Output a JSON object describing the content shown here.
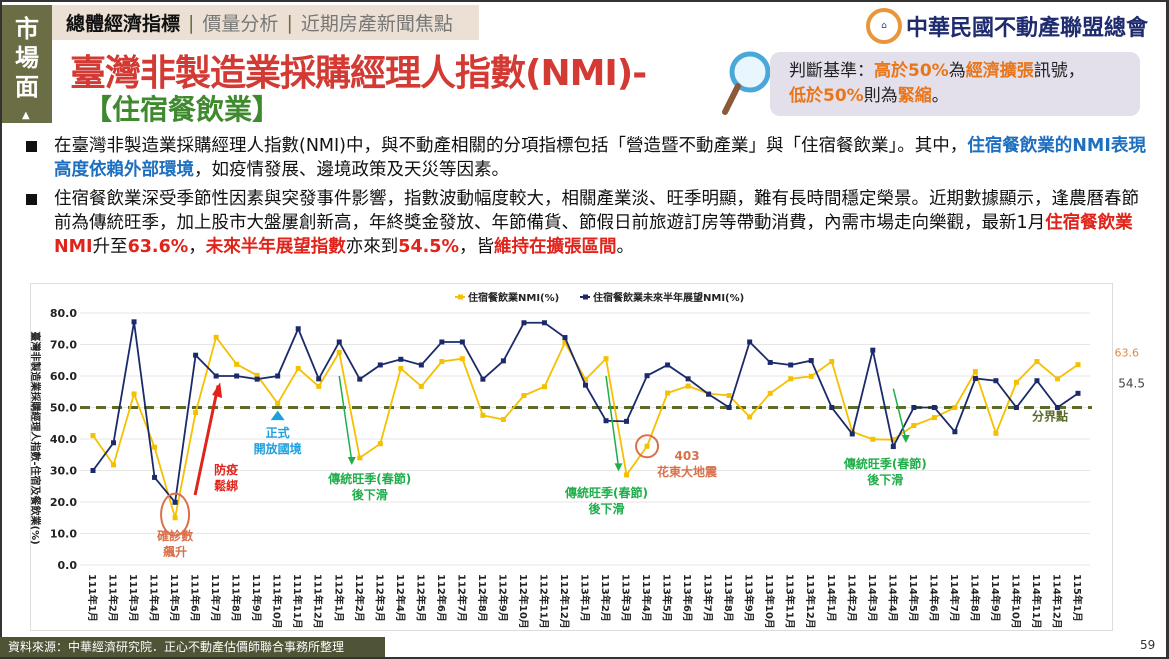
{
  "side_tab": "市場面",
  "nav": {
    "items": [
      "總體經濟指標",
      "價量分析",
      "近期房產新聞焦點"
    ],
    "separator": "|"
  },
  "title": "臺灣非製造業採購經理人指數(NMI)-",
  "subtitle": "【住宿餐飲業】",
  "logo_text": "中華民國不動產聯盟總會",
  "criteria": {
    "p1": "判斷基準：",
    "p2": "高於50%",
    "p3": "為",
    "p4": "經濟擴張",
    "p5": "訊號，",
    "p6": "低於50%",
    "p7": "則為",
    "p8": "緊縮",
    "p9": "。"
  },
  "bullets": [
    {
      "a": "在臺灣非製造業採購經理人指數(NMI)中，與不動產相關的分項指標包括「營造暨不動產業」與「住宿餐飲業」。其中，",
      "b": "住宿餐飲業的NMI表現高度依賴外部環境",
      "c": "，如疫情發展、邊境政策及天災等因素。"
    },
    {
      "a": "住宿餐飲業深受季節性因素與突發事件影響，指數波動幅度較大，相關產業淡、旺季明顯，難有長時間穩定榮景。近期數據顯示，逢農曆春節前為傳統旺季，加上股市大盤屢創新高，年終獎金發放、年節備貨、節假日前旅遊訂房等帶動消費，內需市場走向樂觀，最新1月",
      "b": "住宿餐飲業NMI",
      "c": "升至",
      "d": "63.6%",
      "e": "，",
      "f": "未來半年展望指數",
      "g": "亦來到",
      "h": "54.5%",
      "i": "，皆",
      "j": "維持在擴張區間",
      "k": "。"
    }
  ],
  "chart_data": {
    "type": "line",
    "title": "",
    "ylabel": "臺灣非製造業採購經理人指數-住宿及餐飲業(%)",
    "xlabel": "",
    "ylim": [
      0,
      80
    ],
    "yticks": [
      "0.0",
      "10.0",
      "20.0",
      "30.0",
      "40.0",
      "50.0",
      "60.0",
      "70.0",
      "80.0"
    ],
    "grid": true,
    "legend_position": "top-center",
    "categories": [
      "111年1月",
      "111年2月",
      "111年3月",
      "111年4月",
      "111年5月",
      "111年6月",
      "111年7月",
      "111年8月",
      "111年9月",
      "111年10月",
      "111年11月",
      "111年12月",
      "112年1月",
      "112年2月",
      "112年3月",
      "112年4月",
      "112年5月",
      "112年6月",
      "112年7月",
      "112年8月",
      "112年9月",
      "112年10月",
      "112年11月",
      "112年12月",
      "113年1月",
      "113年2月",
      "113年3月",
      "113年4月",
      "113年5月",
      "113年6月",
      "113年7月",
      "113年8月",
      "113年9月",
      "113年10月",
      "113年11月",
      "113年12月",
      "114年1月",
      "114年2月",
      "114年3月",
      "114年4月",
      "114年5月",
      "114年6月",
      "114年7月",
      "114年8月",
      "114年9月",
      "114年10月",
      "114年11月",
      "114年12月",
      "115年1月"
    ],
    "series": [
      {
        "name": "住宿餐飲業NMI(%)",
        "color": "#f5c000",
        "values": [
          41.1,
          31.8,
          54.3,
          37.4,
          15.0,
          48.4,
          72.3,
          63.7,
          60.2,
          51.3,
          62.4,
          56.7,
          67.5,
          34.0,
          38.5,
          62.4,
          56.7,
          64.6,
          65.5,
          47.5,
          46.2,
          53.8,
          56.6,
          70.6,
          58.9,
          65.5,
          28.6,
          37.7,
          54.6,
          56.8,
          54.4,
          53.8,
          47.0,
          54.5,
          59.1,
          59.9,
          64.6,
          42.3,
          39.9,
          39.8,
          44.3,
          46.8,
          50.0,
          61.4,
          41.8,
          58.0,
          64.6,
          59.1,
          63.6
        ]
      },
      {
        "name": "住宿餐飲業未來半年展望NMI(%)",
        "color": "#1b2a6b",
        "values": [
          30.0,
          38.8,
          77.2,
          27.8,
          19.9,
          66.6,
          60.0,
          60.0,
          59.0,
          60.0,
          75.0,
          59.1,
          70.8,
          59.0,
          63.5,
          65.3,
          63.5,
          70.8,
          70.8,
          59.0,
          64.8,
          76.9,
          76.9,
          72.2,
          57.1,
          45.8,
          45.6,
          60.1,
          63.5,
          59.1,
          54.2,
          50.0,
          70.8,
          64.3,
          63.5,
          64.9,
          50.0,
          41.6,
          68.2,
          37.6,
          50.0,
          50.0,
          42.3,
          59.2,
          58.5,
          50.0,
          58.5,
          50.0,
          54.5
        ]
      }
    ],
    "threshold": {
      "value": 50,
      "label": "分界點",
      "color": "#5b6b2a"
    },
    "last_labels": [
      "63.6",
      "54.5"
    ],
    "annotations": [
      {
        "text": [
          "確診數",
          "飆升"
        ],
        "color": "#d9704a",
        "at": "111年5月"
      },
      {
        "text": [
          "防疫",
          "鬆綁"
        ],
        "color": "#e0241b",
        "at": "111年7月"
      },
      {
        "text": [
          "正式",
          "開放國境"
        ],
        "color": "#1ca0e0",
        "at": "111年10月"
      },
      {
        "text": [
          "傳統旺季(春節)",
          "後下滑"
        ],
        "color": "#1fae4a",
        "at": "112年2月"
      },
      {
        "text": [
          "傳統旺季(春節)",
          "後下滑"
        ],
        "color": "#1fae4a",
        "at": "113年3月"
      },
      {
        "text": [
          "403",
          "花東大地震"
        ],
        "color": "#d9704a",
        "at": "113年4月"
      },
      {
        "text": [
          "傳統旺季(春節)",
          "後下滑"
        ],
        "color": "#1fae4a",
        "at": "114年4月"
      }
    ]
  },
  "footer": "資料來源：中華經濟研究院．正心不動產估價師聯合事務所整理",
  "page_number": "59"
}
